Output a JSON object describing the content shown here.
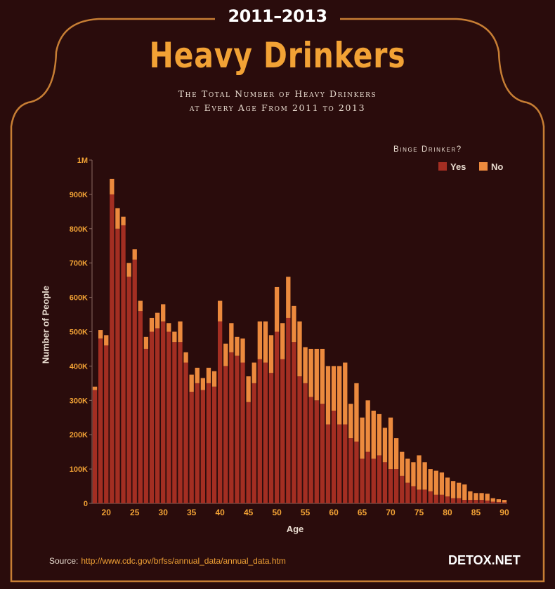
{
  "header": {
    "years": "2011–2013",
    "title": "Heavy Drinkers",
    "subtitle_line1": "The Total Number of Heavy Drinkers",
    "subtitle_line2": "at Every Age From 2011 to 2013"
  },
  "footer": {
    "source_label": "Source:",
    "source_url": "http://www.cdc.gov/brfss/annual_data/annual_data.htm",
    "brand": "DETOX.NET"
  },
  "colors": {
    "background": "#2a0c0c",
    "frame": "#c77e34",
    "yes": "#a32e22",
    "no": "#ec8a3e",
    "title": "#f2a235"
  },
  "chart_data": {
    "type": "bar",
    "stacked": true,
    "xlabel": "Age",
    "ylabel": "Number of People",
    "ylim": [
      0,
      1000000
    ],
    "yticks": [
      0,
      100000,
      200000,
      300000,
      400000,
      500000,
      600000,
      700000,
      800000,
      900000,
      1000000
    ],
    "ytick_labels": [
      "0",
      "100K",
      "200K",
      "300K",
      "400K",
      "500K",
      "600K",
      "700K",
      "800K",
      "900K",
      "1M"
    ],
    "xticks": [
      20,
      25,
      30,
      35,
      40,
      45,
      50,
      55,
      60,
      65,
      70,
      75,
      80,
      85,
      90
    ],
    "legend_title": "Binge Drinker?",
    "legend_position": "top-right",
    "categories": [
      18,
      19,
      20,
      21,
      22,
      23,
      24,
      25,
      26,
      27,
      28,
      29,
      30,
      31,
      32,
      33,
      34,
      35,
      36,
      37,
      38,
      39,
      40,
      41,
      42,
      43,
      44,
      45,
      46,
      47,
      48,
      49,
      50,
      51,
      52,
      53,
      54,
      55,
      56,
      57,
      58,
      59,
      60,
      61,
      62,
      63,
      64,
      65,
      66,
      67,
      68,
      69,
      70,
      71,
      72,
      73,
      74,
      75,
      76,
      77,
      78,
      79,
      80,
      81,
      82,
      83,
      84,
      85,
      86,
      87,
      88,
      89,
      90
    ],
    "series": [
      {
        "name": "Yes",
        "values": [
          330000,
          480000,
          460000,
          900000,
          800000,
          810000,
          660000,
          710000,
          560000,
          450000,
          500000,
          510000,
          530000,
          500000,
          470000,
          470000,
          410000,
          325000,
          350000,
          330000,
          350000,
          340000,
          530000,
          400000,
          440000,
          430000,
          410000,
          295000,
          350000,
          420000,
          410000,
          380000,
          500000,
          420000,
          540000,
          470000,
          370000,
          350000,
          310000,
          300000,
          290000,
          230000,
          270000,
          230000,
          230000,
          190000,
          180000,
          130000,
          150000,
          130000,
          140000,
          120000,
          100000,
          100000,
          80000,
          60000,
          50000,
          40000,
          40000,
          35000,
          25000,
          25000,
          20000,
          15000,
          15000,
          10000,
          10000,
          10000,
          10000,
          8000,
          5000,
          4000,
          3000
        ]
      },
      {
        "name": "No",
        "values": [
          10000,
          25000,
          30000,
          45000,
          60000,
          25000,
          40000,
          30000,
          30000,
          35000,
          40000,
          45000,
          50000,
          25000,
          30000,
          60000,
          30000,
          50000,
          45000,
          35000,
          45000,
          45000,
          60000,
          65000,
          85000,
          55000,
          70000,
          75000,
          60000,
          110000,
          120000,
          110000,
          130000,
          105000,
          120000,
          105000,
          160000,
          105000,
          140000,
          150000,
          160000,
          170000,
          130000,
          170000,
          180000,
          100000,
          170000,
          120000,
          150000,
          140000,
          120000,
          100000,
          150000,
          90000,
          70000,
          70000,
          70000,
          100000,
          80000,
          65000,
          70000,
          65000,
          55000,
          50000,
          45000,
          45000,
          25000,
          20000,
          20000,
          20000,
          10000,
          8000,
          7000
        ]
      }
    ]
  }
}
